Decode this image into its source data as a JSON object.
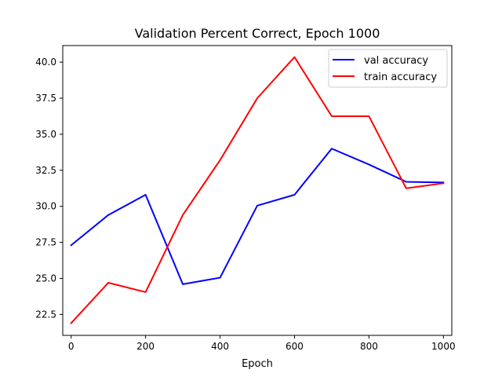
{
  "chart_data": {
    "type": "line",
    "title": "Validation Percent Correct, Epoch 1000",
    "xlabel": "Epoch",
    "ylabel": "",
    "xlim": [
      -22.5,
      1022.5
    ],
    "ylim": [
      21.05,
      41.15
    ],
    "x": [
      0,
      100,
      200,
      300,
      400,
      500,
      600,
      700,
      800,
      900,
      1000
    ],
    "xticks": [
      0,
      200,
      400,
      600,
      800,
      1000
    ],
    "xtick_labels": [
      "0",
      "200",
      "400",
      "600",
      "800",
      "1000"
    ],
    "yticks": [
      22.5,
      25.0,
      27.5,
      30.0,
      32.5,
      35.0,
      37.5,
      40.0
    ],
    "ytick_labels": [
      "22.5",
      "25.0",
      "27.5",
      "30.0",
      "32.5",
      "35.0",
      "37.5",
      "40.0"
    ],
    "series": [
      {
        "name": "val accuracy",
        "color": "#0000ff",
        "values": [
          27.3,
          29.4,
          30.8,
          24.6,
          25.05,
          30.05,
          30.8,
          34.0,
          32.9,
          31.7,
          31.65
        ]
      },
      {
        "name": "train accuracy",
        "color": "#ff0000",
        "values": [
          21.9,
          24.7,
          24.05,
          29.4,
          33.2,
          37.5,
          40.35,
          36.25,
          36.25,
          31.25,
          31.6
        ]
      }
    ],
    "legend_position": "upper-right",
    "grid": false
  }
}
